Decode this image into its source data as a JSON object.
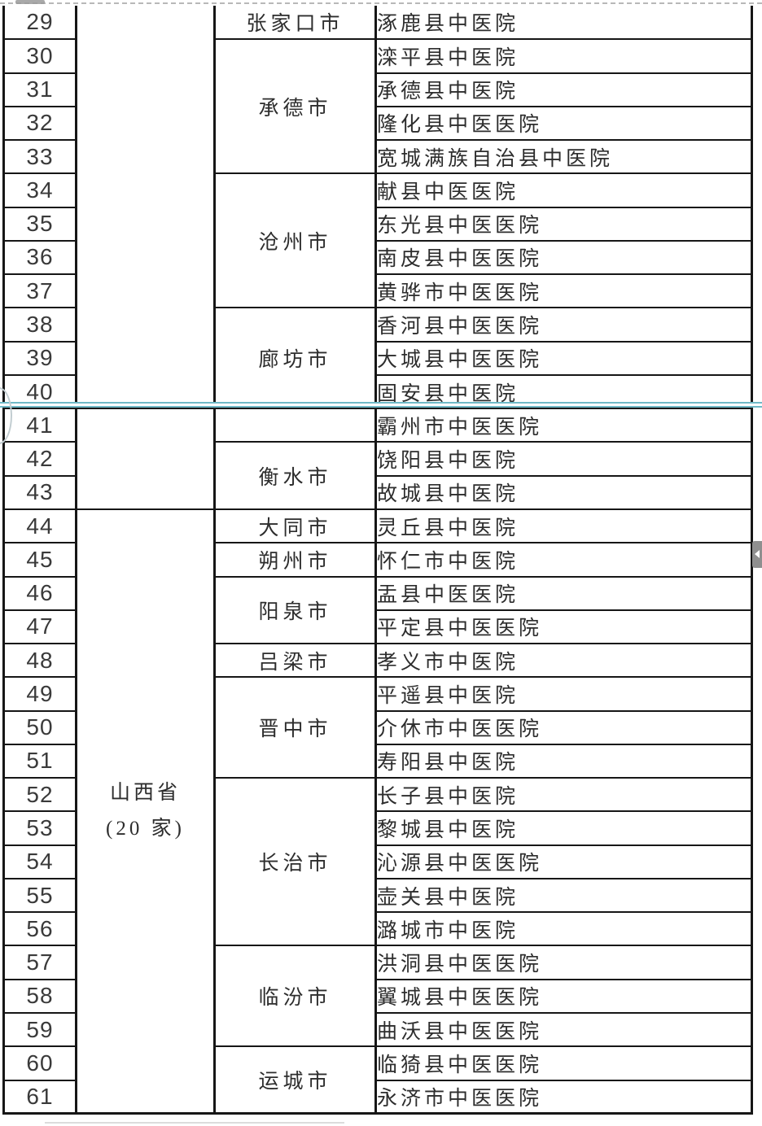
{
  "document": {
    "kind": "hospital-list-table-page",
    "province_label": "山西省",
    "province_count_label": "(20 家)"
  },
  "colors": {
    "border": "#161616",
    "page_break_line": "#6fb9c7",
    "text": "#2d2d2d",
    "scroll_handle": "#8f8f8f"
  },
  "table": {
    "province_cells": [
      {
        "start": 29,
        "span": 12,
        "lines": []
      },
      {
        "start": 41,
        "span": 3,
        "lines": []
      },
      {
        "start": 44,
        "span": 18,
        "lines": [
          "山西省",
          "(20 家)"
        ]
      }
    ],
    "city_cells": [
      {
        "start": 29,
        "span": 1,
        "label": "张家口市"
      },
      {
        "start": 30,
        "span": 4,
        "label": "承德市"
      },
      {
        "start": 34,
        "span": 4,
        "label": "沧州市"
      },
      {
        "start": 38,
        "span": 3,
        "label": "廊坊市"
      },
      {
        "start": 41,
        "span": 1,
        "label": ""
      },
      {
        "start": 42,
        "span": 2,
        "label": "衡水市"
      },
      {
        "start": 44,
        "span": 1,
        "label": "大同市"
      },
      {
        "start": 45,
        "span": 1,
        "label": "朔州市"
      },
      {
        "start": 46,
        "span": 2,
        "label": "阳泉市"
      },
      {
        "start": 48,
        "span": 1,
        "label": "吕梁市"
      },
      {
        "start": 49,
        "span": 3,
        "label": "晋中市"
      },
      {
        "start": 52,
        "span": 5,
        "label": "长治市"
      },
      {
        "start": 57,
        "span": 3,
        "label": "临汾市"
      },
      {
        "start": 60,
        "span": 2,
        "label": "运城市"
      }
    ],
    "rows": [
      {
        "num": 29,
        "hospital": "涿鹿县中医院"
      },
      {
        "num": 30,
        "hospital": "滦平县中医院"
      },
      {
        "num": 31,
        "hospital": "承德县中医院"
      },
      {
        "num": 32,
        "hospital": "隆化县中医医院"
      },
      {
        "num": 33,
        "hospital": "宽城满族自治县中医院"
      },
      {
        "num": 34,
        "hospital": "献县中医医院"
      },
      {
        "num": 35,
        "hospital": "东光县中医医院"
      },
      {
        "num": 36,
        "hospital": "南皮县中医医院"
      },
      {
        "num": 37,
        "hospital": "黄骅市中医医院"
      },
      {
        "num": 38,
        "hospital": "香河县中医医院"
      },
      {
        "num": 39,
        "hospital": "大城县中医医院"
      },
      {
        "num": 40,
        "hospital": "固安县中医院"
      },
      {
        "num": 41,
        "hospital": "霸州市中医医院"
      },
      {
        "num": 42,
        "hospital": "饶阳县中医院"
      },
      {
        "num": 43,
        "hospital": "故城县中医院"
      },
      {
        "num": 44,
        "hospital": "灵丘县中医院"
      },
      {
        "num": 45,
        "hospital": "怀仁市中医院"
      },
      {
        "num": 46,
        "hospital": "盂县中医医院"
      },
      {
        "num": 47,
        "hospital": "平定县中医医院"
      },
      {
        "num": 48,
        "hospital": "孝义市中医院"
      },
      {
        "num": 49,
        "hospital": "平遥县中医院"
      },
      {
        "num": 50,
        "hospital": "介休市中医医院"
      },
      {
        "num": 51,
        "hospital": "寿阳县中医院"
      },
      {
        "num": 52,
        "hospital": "长子县中医院"
      },
      {
        "num": 53,
        "hospital": "黎城县中医院"
      },
      {
        "num": 54,
        "hospital": "沁源县中医医院"
      },
      {
        "num": 55,
        "hospital": "壶关县中医院"
      },
      {
        "num": 56,
        "hospital": "潞城市中医院"
      },
      {
        "num": 57,
        "hospital": "洪洞县中医医院"
      },
      {
        "num": 58,
        "hospital": "翼城县中医医院"
      },
      {
        "num": 59,
        "hospital": "曲沃县中医医院"
      },
      {
        "num": 60,
        "hospital": "临猗县中医医院"
      },
      {
        "num": 61,
        "hospital": "永济市中医医院"
      }
    ]
  }
}
